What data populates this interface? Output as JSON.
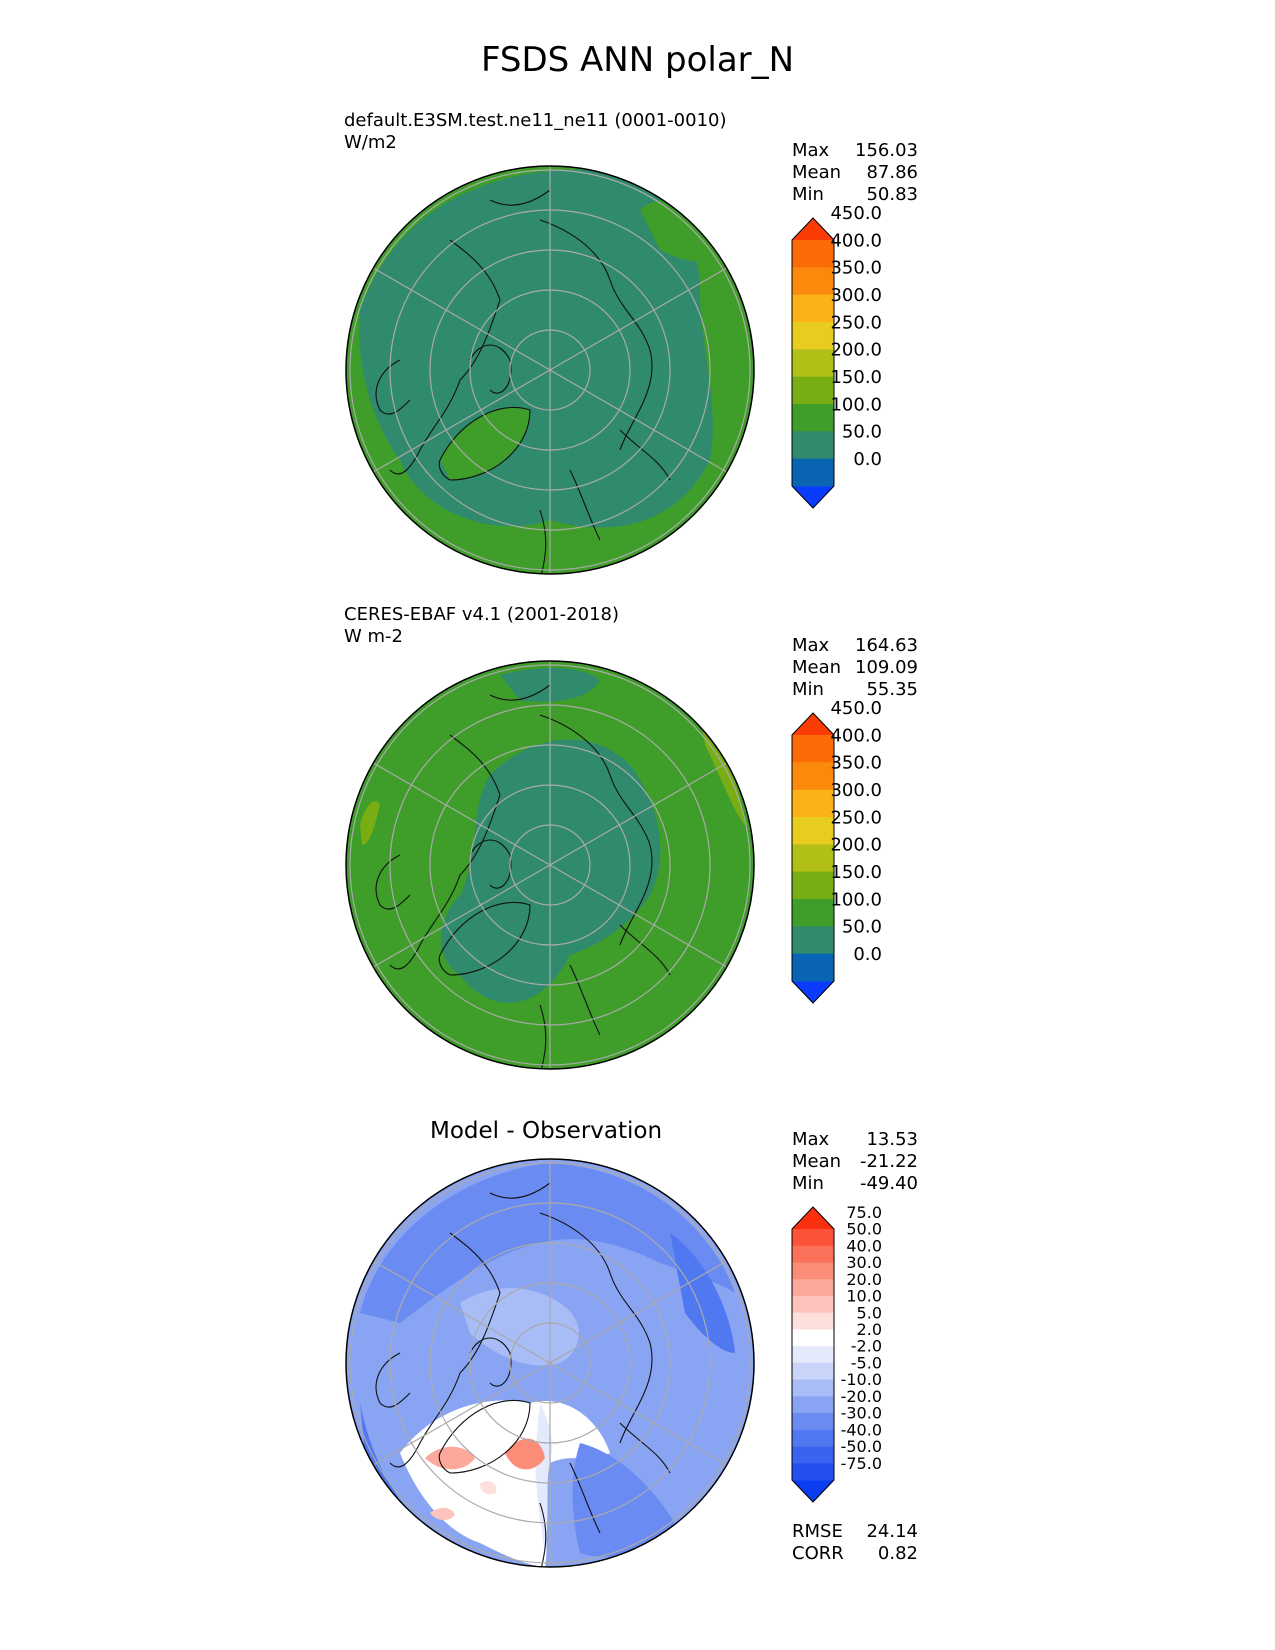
{
  "figure_title": "FSDS ANN polar_N",
  "panels": [
    {
      "title_line1": "default.E3SM.test.ne11_ne11 (0001-0010)",
      "title_line2": "W/m2",
      "stats": [
        {
          "label": "Max",
          "value": "156.03"
        },
        {
          "label": "Mean",
          "value": "87.86"
        },
        {
          "label": "Min",
          "value": "50.83"
        }
      ]
    },
    {
      "title_line1": "CERES-EBAF v4.1 (2001-2018)",
      "title_line2": "W m-2",
      "stats": [
        {
          "label": "Max",
          "value": "164.63"
        },
        {
          "label": "Mean",
          "value": "109.09"
        },
        {
          "label": "Min",
          "value": "55.35"
        }
      ]
    },
    {
      "title_line1": "Model - Observation",
      "stats": [
        {
          "label": "Max",
          "value": "13.53"
        },
        {
          "label": "Mean",
          "value": "-21.22"
        },
        {
          "label": "Min",
          "value": "-49.40"
        }
      ],
      "extra_stats": [
        {
          "label": "RMSE",
          "value": "24.14"
        },
        {
          "label": "CORR",
          "value": "0.82"
        }
      ]
    }
  ],
  "chart_data": [
    {
      "type": "heatmap",
      "projection": "north polar stereographic",
      "colorbar": {
        "levels": [
          "0.0",
          "50.0",
          "100.0",
          "150.0",
          "200.0",
          "250.0",
          "300.0",
          "350.0",
          "400.0",
          "450.0"
        ],
        "colors": [
          "#0a3cff",
          "#0a64b4",
          "#2f8a6e",
          "#3f9e2a",
          "#78ad14",
          "#b1bf16",
          "#e8cc20",
          "#fbb217",
          "#fb8a0c",
          "#fb6b05",
          "#fb3c05"
        ],
        "extend": "both"
      }
    },
    {
      "type": "heatmap",
      "projection": "north polar stereographic",
      "colorbar": {
        "levels": [
          "0.0",
          "50.0",
          "100.0",
          "150.0",
          "200.0",
          "250.0",
          "300.0",
          "350.0",
          "400.0",
          "450.0"
        ],
        "colors": [
          "#0a3cff",
          "#0a64b4",
          "#2f8a6e",
          "#3f9e2a",
          "#78ad14",
          "#b1bf16",
          "#e8cc20",
          "#fbb217",
          "#fb8a0c",
          "#fb6b05",
          "#fb3c05"
        ],
        "extend": "both"
      }
    },
    {
      "type": "heatmap",
      "projection": "north polar stereographic",
      "colorbar": {
        "levels": [
          "-75.0",
          "-50.0",
          "-40.0",
          "-30.0",
          "-20.0",
          "-10.0",
          "-5.0",
          "-2.0",
          "2.0",
          "5.0",
          "10.0",
          "20.0",
          "30.0",
          "40.0",
          "50.0",
          "75.0"
        ],
        "colors": [
          "#0a3cf0",
          "#2450f0",
          "#3a64f0",
          "#5078f0",
          "#6a8cf2",
          "#8aa4f4",
          "#a8bcf6",
          "#c8d4f8",
          "#e4eafc",
          "#ffffff",
          "#fde0dc",
          "#fcc4bc",
          "#fca89a",
          "#fb8c78",
          "#fb7058",
          "#fb5238",
          "#fb3010"
        ],
        "extend": "both"
      }
    }
  ]
}
